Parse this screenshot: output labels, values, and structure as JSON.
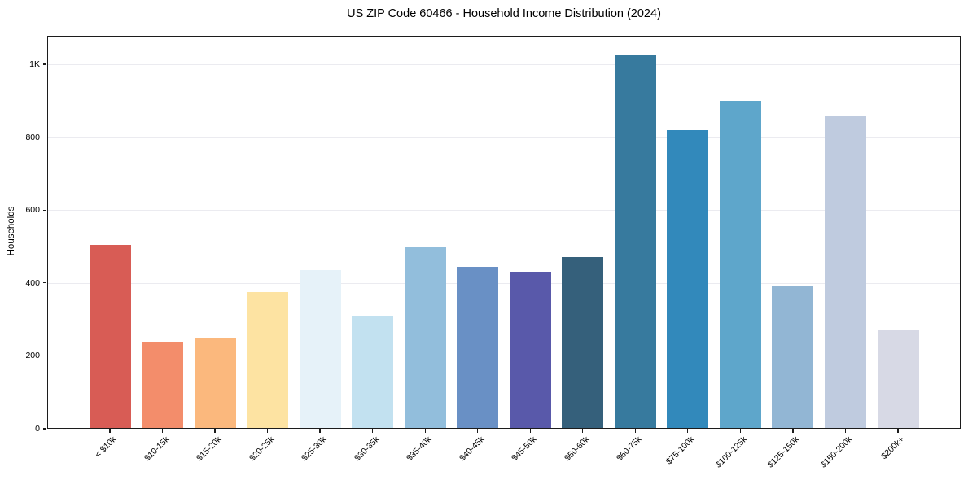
{
  "chart_data": {
    "type": "bar",
    "title": "US ZIP Code 60466 - Household Income Distribution (2024)",
    "xlabel": "",
    "ylabel": "Households",
    "categories": [
      "< $10k",
      "$10-15k",
      "$15-20k",
      "$20-25k",
      "$25-30k",
      "$30-35k",
      "$35-40k",
      "$40-45k",
      "$45-50k",
      "$50-60k",
      "$60-75k",
      "$75-100k",
      "$100-125k",
      "$125-150k",
      "$150-200k",
      "$200k+"
    ],
    "values": [
      505,
      240,
      250,
      375,
      435,
      310,
      500,
      445,
      430,
      470,
      1025,
      820,
      900,
      390,
      860,
      270
    ],
    "bar_colors": [
      "#d85c55",
      "#f38d6b",
      "#fbb87d",
      "#fde3a2",
      "#e6f2f9",
      "#c2e1f0",
      "#92bedc",
      "#6990c5",
      "#5959aa",
      "#35607b",
      "#377a9e",
      "#3289bb",
      "#5ea6cb",
      "#92b6d4",
      "#bfcbdf",
      "#d7d9e5"
    ],
    "ylim": [
      0,
      1078
    ],
    "yticks": [
      0,
      200,
      400,
      600,
      800,
      1000
    ],
    "ytick_labels": [
      "0",
      "200",
      "400",
      "600",
      "800",
      "1K"
    ],
    "grid": "horizontal-only",
    "legend": "none",
    "styles": {
      "background": "#ffffff",
      "grid_color": "#ebebf0",
      "spine_color": "#1c1c1c",
      "text_color": "#000000"
    }
  }
}
